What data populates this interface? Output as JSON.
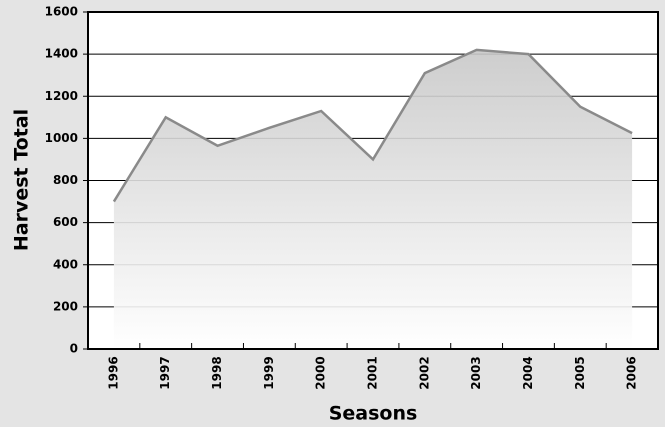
{
  "chart_data": {
    "type": "area",
    "x_label": "Seasons",
    "y_label": "Harvest Total",
    "categories": [
      "1996",
      "1997",
      "1998",
      "1999",
      "2000",
      "2001",
      "2002",
      "2003",
      "2004",
      "2005",
      "2006"
    ],
    "values": [
      700,
      1100,
      965,
      1050,
      1130,
      900,
      1310,
      1420,
      1400,
      1150,
      1025
    ],
    "color": "#8a8a8a",
    "ylim": [
      0,
      1600
    ],
    "yticks": [
      0,
      200,
      400,
      600,
      800,
      1000,
      1200,
      1400,
      1600
    ],
    "grid": true
  }
}
